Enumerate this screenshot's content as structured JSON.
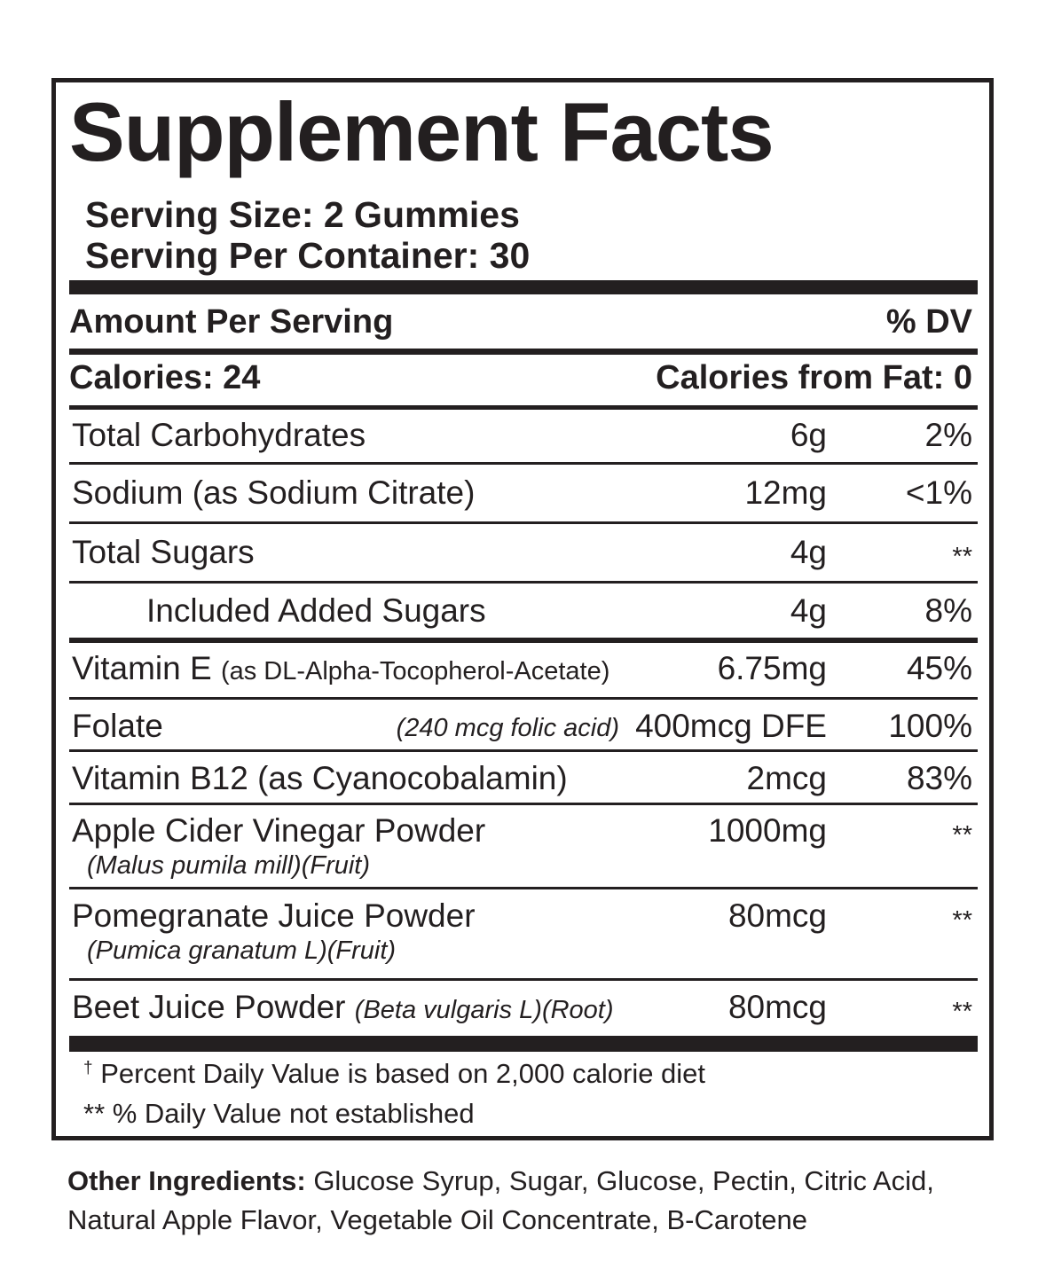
{
  "title": "Supplement Facts",
  "serving_size": "Serving Size: 2 Gummies",
  "servings_per_container": "Serving Per Container: 30",
  "header": {
    "amount": "Amount  Per Serving",
    "dv": "% DV"
  },
  "calories": {
    "left": "Calories: 24",
    "right": "Calories from Fat: 0"
  },
  "nutrients": [
    {
      "name": "Total Carbohydrates",
      "amount": "6g",
      "dv": "2%"
    },
    {
      "name": "Sodium (as Sodium Citrate)",
      "amount": "12mg",
      "dv": "<1%"
    },
    {
      "name": "Total Sugars",
      "amount": "4g",
      "dv": "**"
    },
    {
      "name": "Included Added Sugars",
      "amount": "4g",
      "dv": "8%"
    },
    {
      "name": "Vitamin E",
      "detail": "(as DL-Alpha-Tocopherol-Acetate)",
      "amount": "6.75mg",
      "dv": "45%"
    },
    {
      "name": "Folate",
      "detail": "(240 mcg folic acid)",
      "amount": "400mcg DFE",
      "dv": "100%"
    },
    {
      "name": "Vitamin B12 (as Cyanocobalamin)",
      "amount": "2mcg",
      "dv": "83%"
    },
    {
      "name": "Apple Cider Vinegar Powder",
      "detail": "(Malus pumila mill)(Fruit)",
      "amount": "1000mg",
      "dv": "**"
    },
    {
      "name": "Pomegranate Juice Powder",
      "detail": "(Pumica granatum L)(Fruit)",
      "amount": "80mcg",
      "dv": "**"
    },
    {
      "name": "Beet Juice Powder",
      "detail": "(Beta vulgaris L)(Root)",
      "amount": "80mcg",
      "dv": "**"
    }
  ],
  "footnotes": {
    "dagger": "†",
    "note1": "Percent Daily Value is based on 2,000 calorie diet",
    "note2": "** % Daily Value not established"
  },
  "other_ingredients": {
    "label": "Other Ingredients:",
    "text": " Glucose Syrup, Sugar, Glucose, Pectin, Citric Acid, Natural Apple Flavor, Vegetable Oil Concentrate, B-Carotene"
  },
  "colors": {
    "ink": "#231f20",
    "background": "#ffffff"
  }
}
